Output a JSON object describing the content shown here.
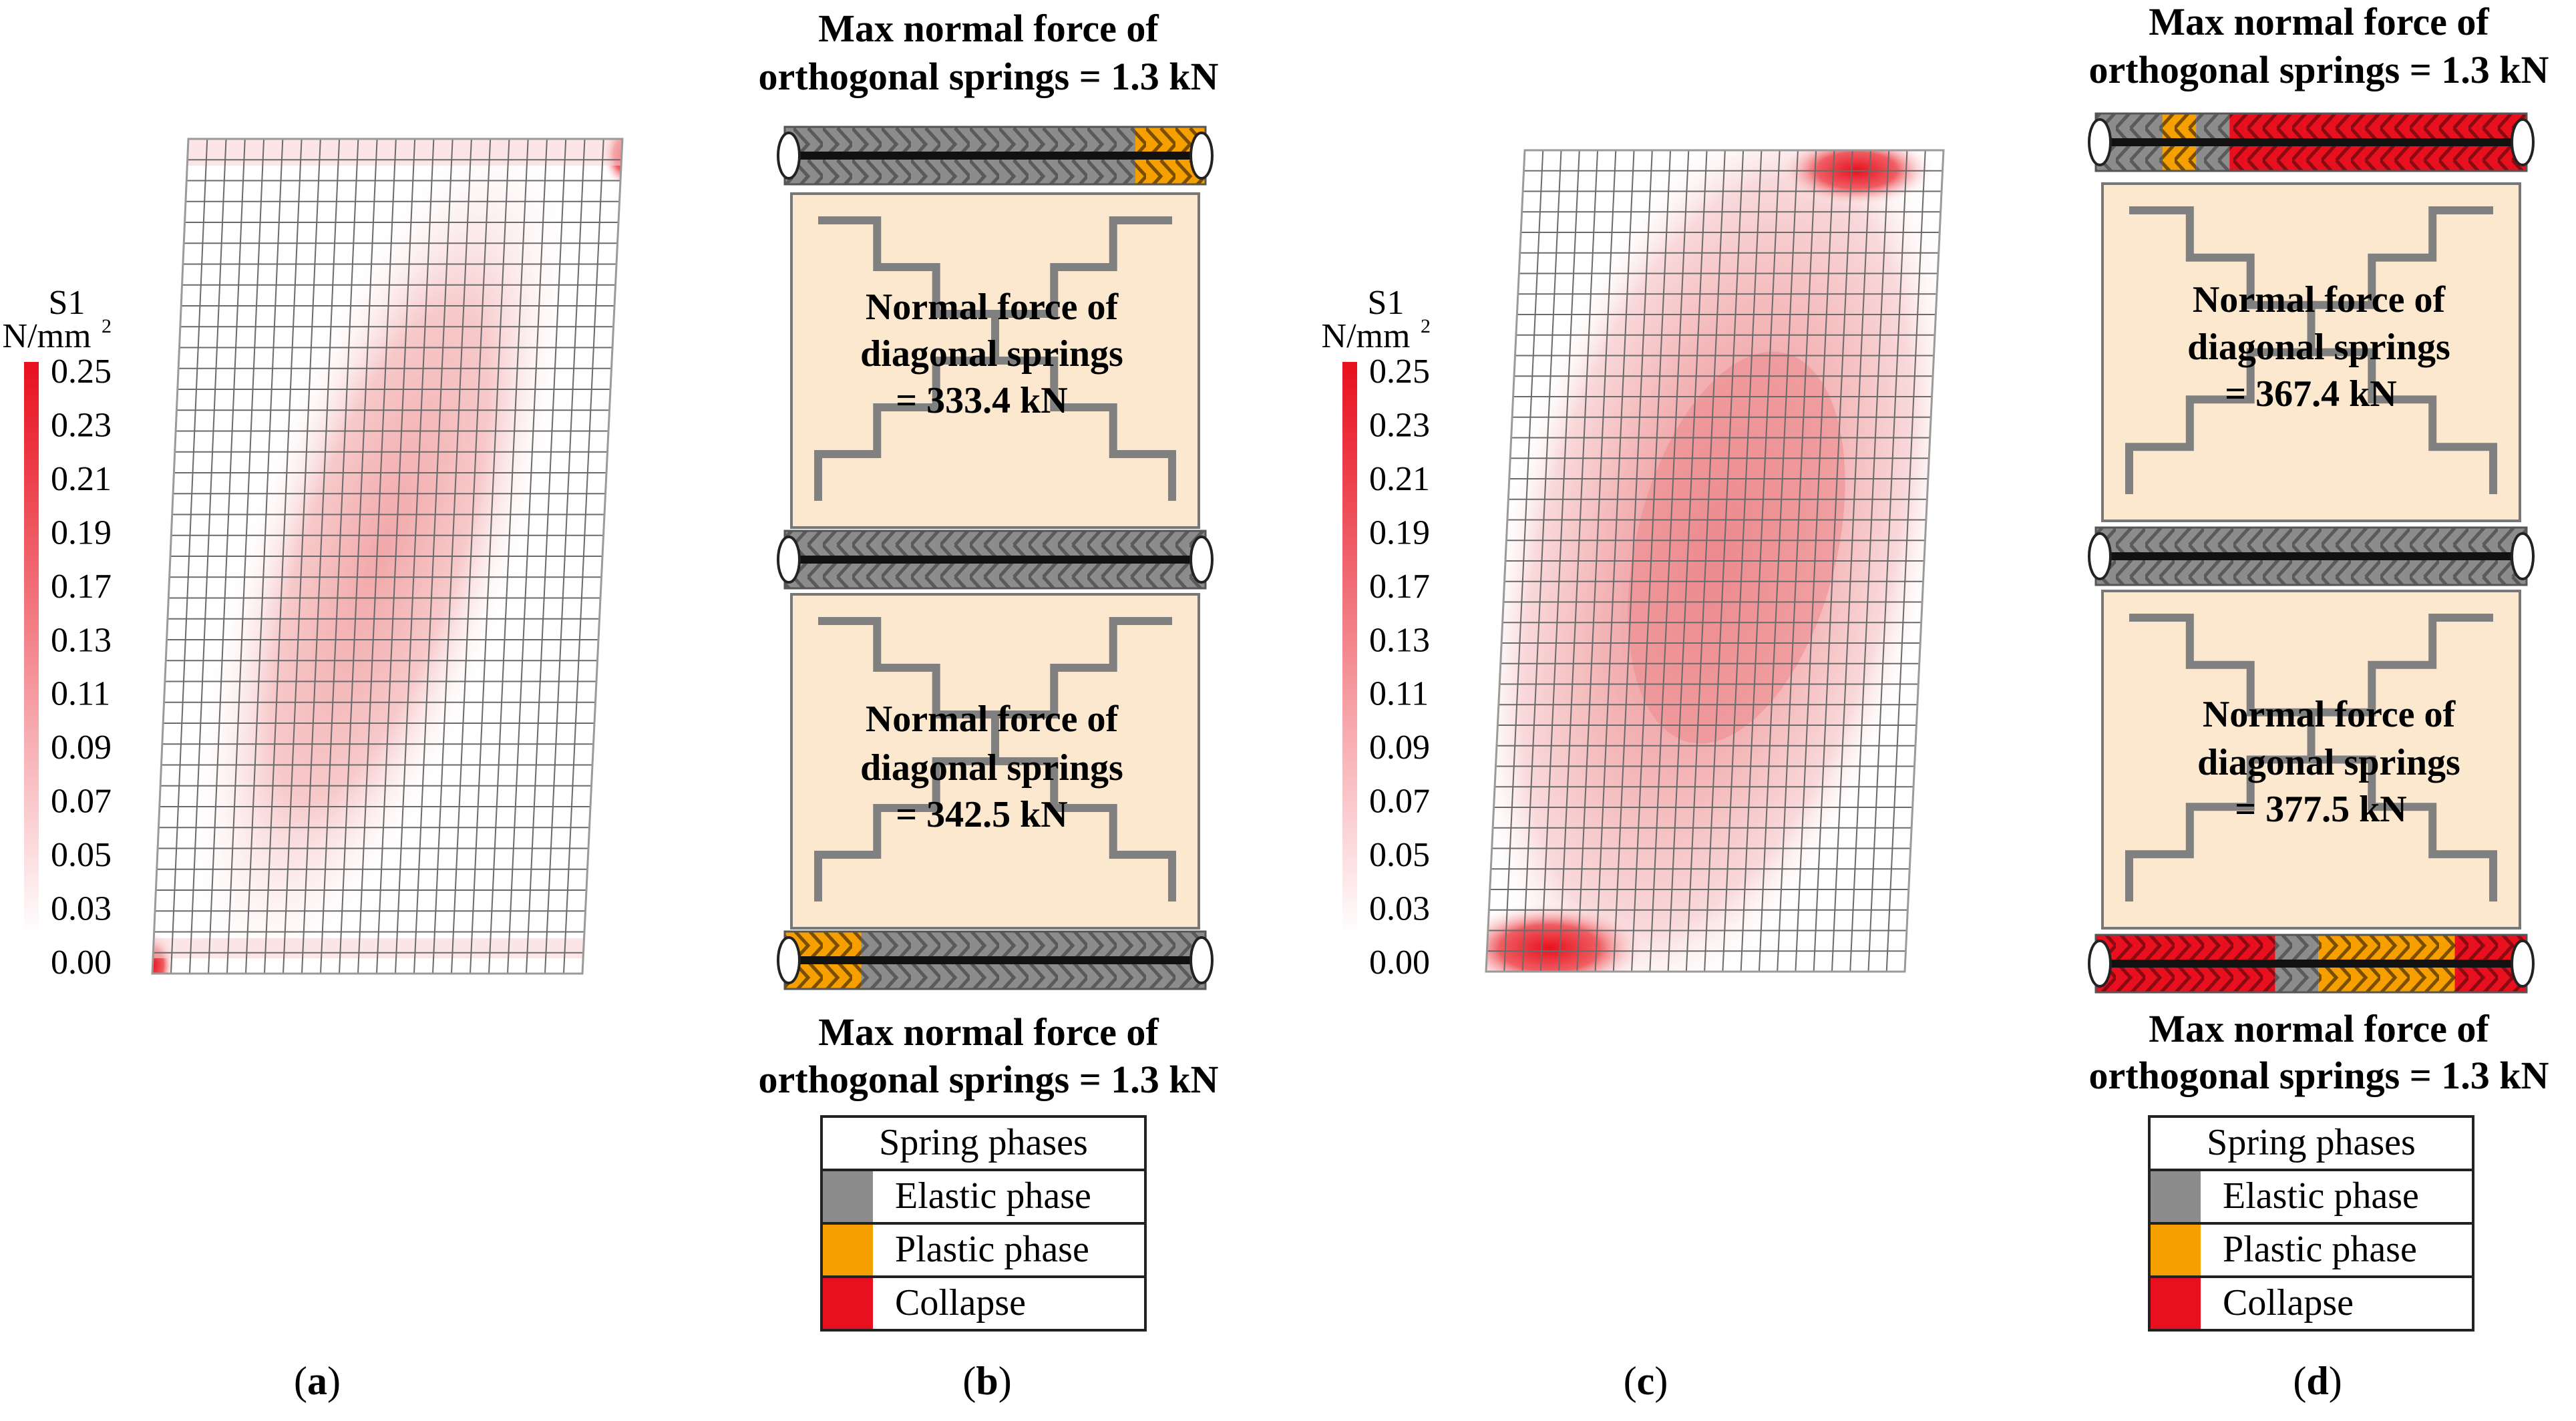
{
  "colors": {
    "elastic": "#8c8c8c",
    "plastic": "#f5a000",
    "collapse": "#e8101e",
    "panel_fill": "#fbe8cf",
    "stress_max": "#e8101e",
    "grid": "#6b6b6b"
  },
  "icons": {
    "axis": "tick-line",
    "spring": "hatched-bar"
  },
  "legend_scale": {
    "symbol": "S1",
    "unit": "N/mm",
    "unit_exp": "2",
    "ticks": [
      "0.25",
      "0.23",
      "0.21",
      "0.19",
      "0.17",
      "0.13",
      "0.11",
      "0.09",
      "0.07",
      "0.05",
      "0.03",
      "0.00"
    ]
  },
  "panels": {
    "a": {
      "label": "(a)",
      "letter": "a"
    },
    "b": {
      "label": "(b)",
      "letter": "b",
      "top_force": [
        "Max normal force of",
        "orthogonal springs = 1.3 kN"
      ],
      "upper_block": [
        "Normal force of",
        "diagonal springs",
        "= 333.4 kN"
      ],
      "lower_block": [
        "Normal force of",
        "diagonal springs",
        "= 342.5 kN"
      ],
      "bottom_force": [
        "Max normal force of",
        "orthogonal springs = 1.3 kN"
      ]
    },
    "c": {
      "label": "(c)",
      "letter": "c"
    },
    "d": {
      "label": "(d)",
      "letter": "d",
      "top_force": [
        "Max normal force of",
        "orthogonal springs = 1.3 kN"
      ],
      "upper_block": [
        "Normal force of",
        "diagonal springs",
        "= 367.4 kN"
      ],
      "lower_block": [
        "Normal force of",
        "diagonal springs",
        "= 377.5 kN"
      ],
      "bottom_force": [
        "Max normal force of",
        "orthogonal springs = 1.3 kN"
      ]
    }
  },
  "spring_legend": {
    "title": "Spring phases",
    "items": [
      "Elastic phase",
      "Plastic phase",
      "Collapse"
    ]
  }
}
